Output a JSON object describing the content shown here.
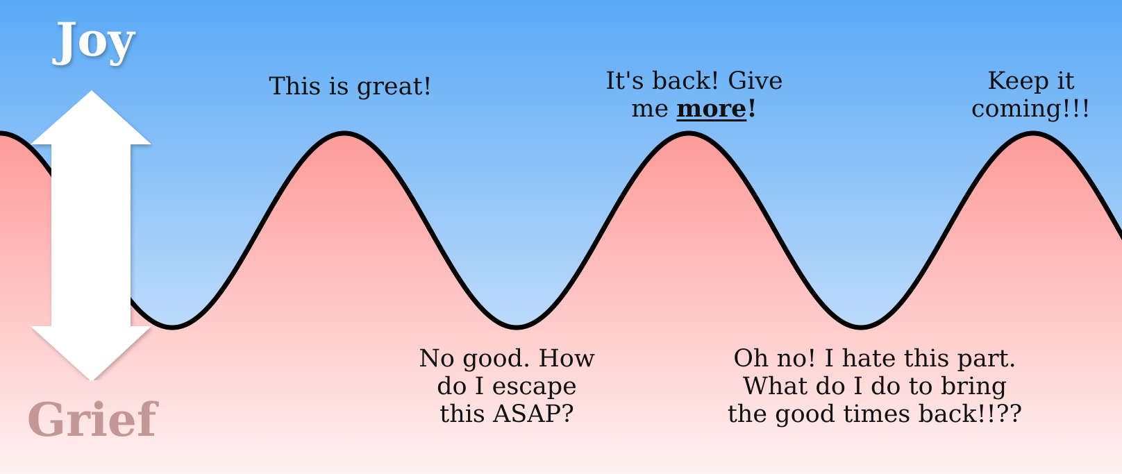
{
  "colors": {
    "sky_top": "#5aa9f6",
    "sky_bottom": "#e9f1fc",
    "fill_top": "#ff9a9a",
    "fill_bottom": "#fff2f2",
    "curve": "#000000",
    "arrow": "#ffffff",
    "joy": "#ffffff",
    "grief": "#c49797"
  },
  "scale": {
    "top_label": "Joy",
    "bottom_label": "Grief",
    "arrow_icon": "double-vertical-arrow-icon"
  },
  "annotations": {
    "peak_1": "This is great!",
    "peak_2_line1": "It's back! Give",
    "peak_2_line2_pre": "me ",
    "peak_2_line2_emph": "more",
    "peak_2_line2_post": "!",
    "peak_3": "Keep it\ncoming!!!",
    "trough_2": "No good. How\ndo I escape\nthis ASAP?",
    "trough_3": "Oh no! I hate this part.\nWhat do I do to bring\nthe good times back!!??"
  }
}
